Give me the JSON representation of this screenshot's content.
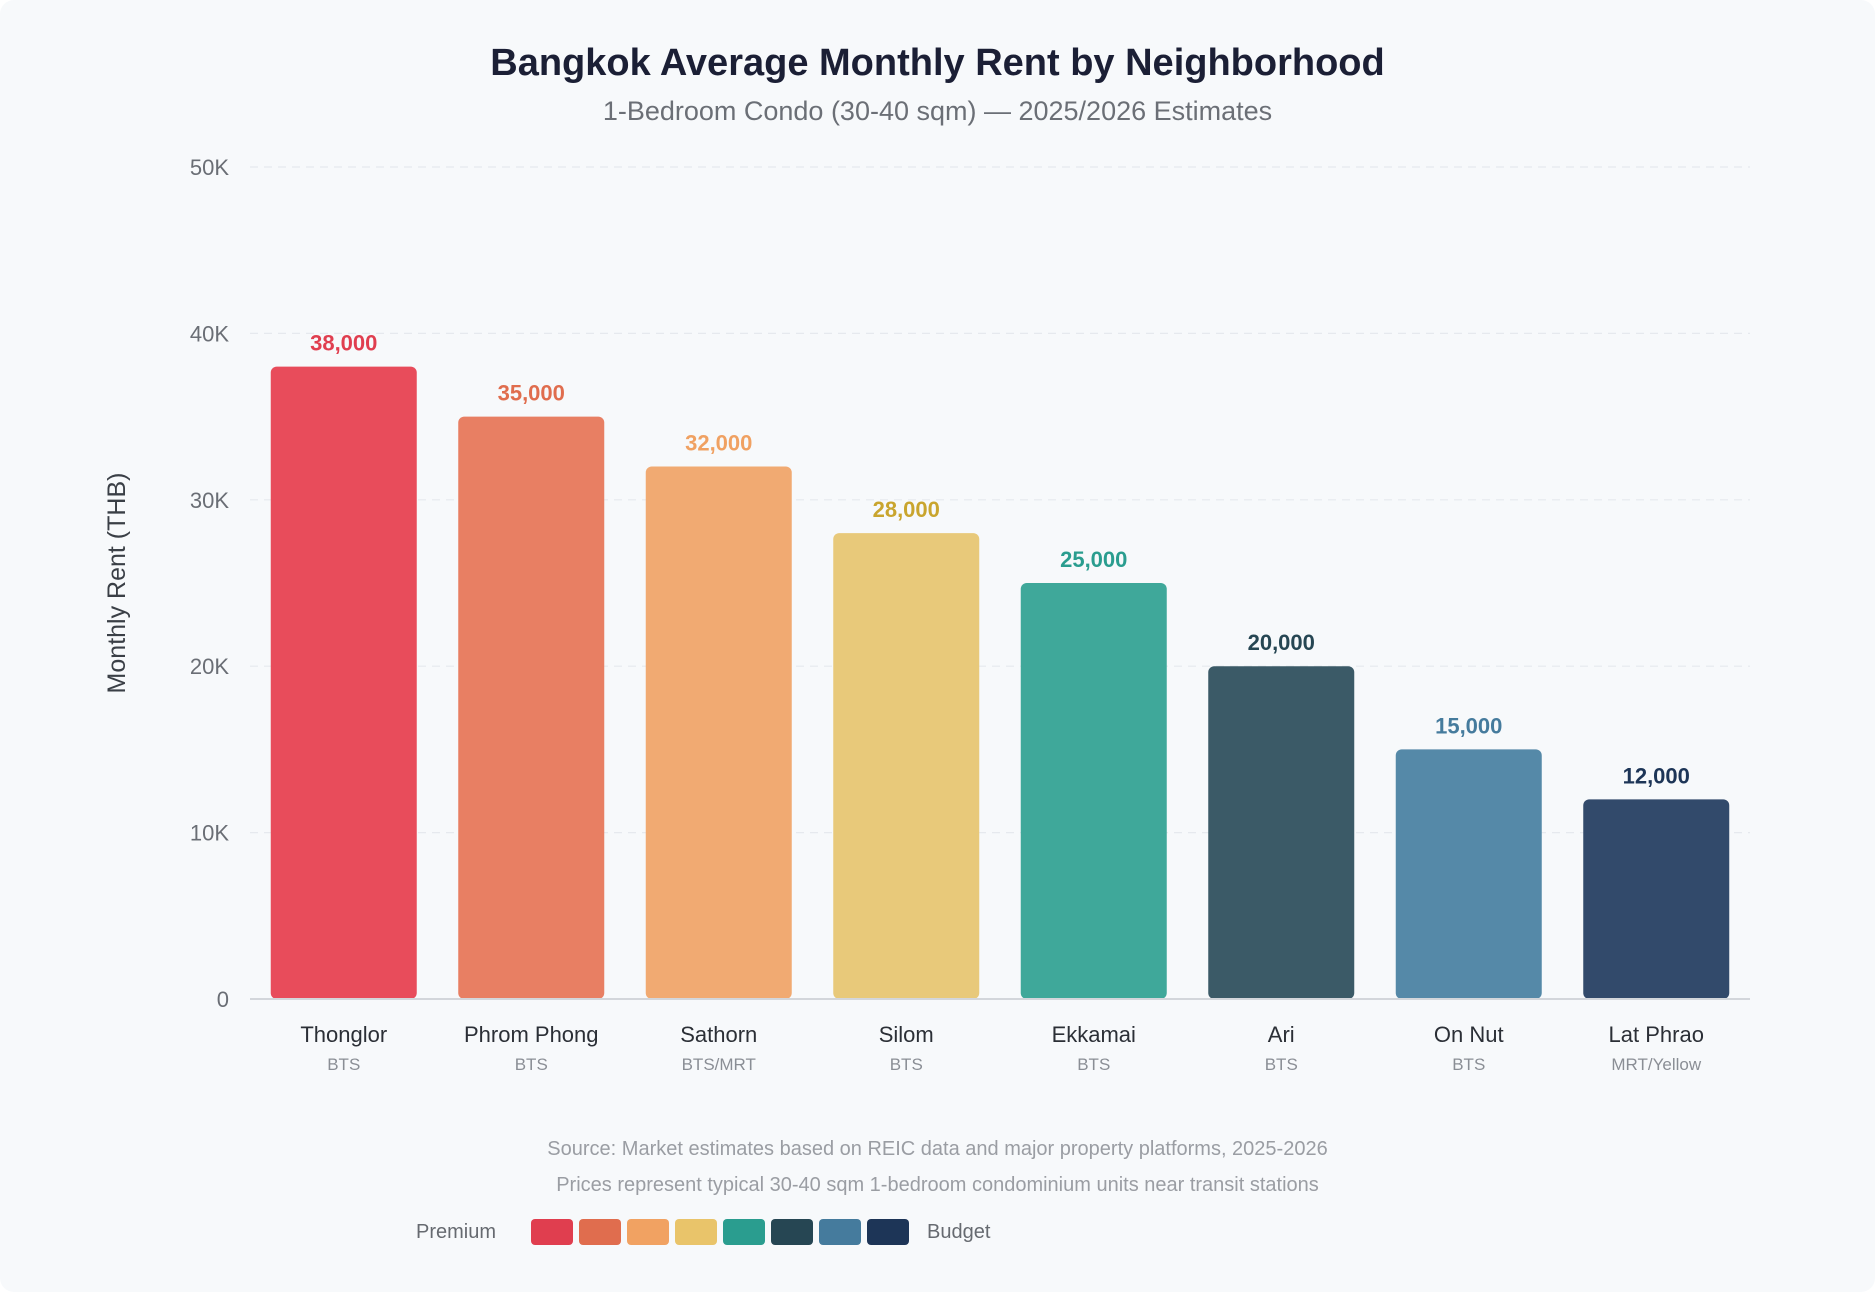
{
  "chart_data": {
    "type": "bar",
    "title": "Bangkok Average Monthly Rent by Neighborhood",
    "subtitle": "1-Bedroom Condo (30-40 sqm) — 2025/2026 Estimates",
    "ylabel": "Monthly Rent (THB)",
    "xlabel": "",
    "ylim": [
      0,
      50000
    ],
    "yticks": [
      {
        "value": 0,
        "label": "0"
      },
      {
        "value": 10000,
        "label": "10K"
      },
      {
        "value": 20000,
        "label": "20K"
      },
      {
        "value": 30000,
        "label": "30K"
      },
      {
        "value": 40000,
        "label": "40K"
      },
      {
        "value": 50000,
        "label": "50K"
      }
    ],
    "grid": true,
    "categories": [
      "Thonglor",
      "Phrom Phong",
      "Sathorn",
      "Silom",
      "Ekkamai",
      "Ari",
      "On Nut",
      "Lat Phrao"
    ],
    "transit": [
      "BTS",
      "BTS",
      "BTS/MRT",
      "BTS",
      "BTS",
      "BTS",
      "BTS",
      "MRT/Yellow"
    ],
    "values": [
      38000,
      35000,
      32000,
      28000,
      25000,
      20000,
      15000,
      12000
    ],
    "value_labels": [
      "38,000",
      "35,000",
      "32,000",
      "28,000",
      "25,000",
      "20,000",
      "15,000",
      "12,000"
    ],
    "bar_colors": [
      "#e84c5b",
      "#e87f63",
      "#f1aa72",
      "#e8c97a",
      "#3fa89a",
      "#3b5a67",
      "#5589a8",
      "#324a6b"
    ],
    "label_colors": [
      "#e03e4f",
      "#e06d4e",
      "#f0a162",
      "#c9a52e",
      "#2a9d8f",
      "#264653",
      "#457b9d",
      "#1d3557"
    ]
  },
  "footer": {
    "source_line1": "Source: Market estimates based on REIC data and major property platforms, 2025-2026",
    "source_line2": "Prices represent typical 30-40 sqm 1-bedroom condominium units near transit stations"
  },
  "legend": {
    "left_label": "Premium",
    "right_label": "Budget",
    "colors": [
      "#e03e4f",
      "#e06d4e",
      "#f1a262",
      "#e9c46a",
      "#2a9d8f",
      "#264653",
      "#457b9d",
      "#1d3557"
    ]
  }
}
